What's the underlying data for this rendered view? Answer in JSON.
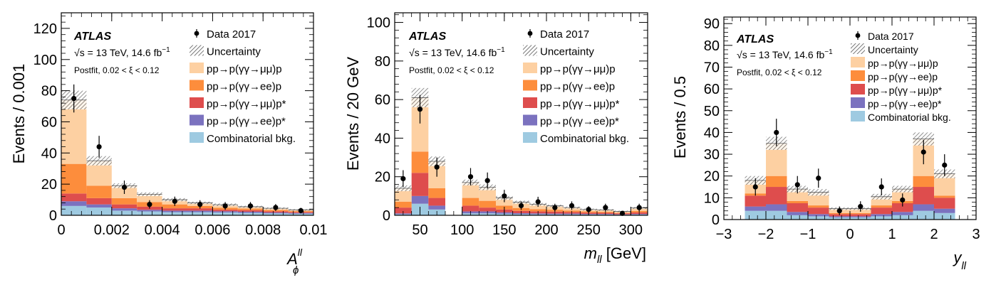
{
  "legend": {
    "experiment": "ATLAS",
    "energy_prefix": "√",
    "energy": "s = 13 TeV, 14.6 fb",
    "energy_exp": "−1",
    "postfit": "Postfit, 0.02 < ξ < 0.12",
    "entries": [
      "Data 2017",
      "Uncertainty",
      "pp→p(γγ→μμ)p",
      "pp→p(γγ→ee)p",
      "pp→p(γγ→μμ)p*",
      "pp→p(γγ→ee)p*",
      "Combinatorial bkg."
    ]
  },
  "colors": {
    "mumu_elastic": "#fdd0a2",
    "ee_elastic": "#fd8d3c",
    "mumu_dissoc": "#de4d4d",
    "ee_dissoc": "#7b72bf",
    "combinatorial": "#9ecae1"
  },
  "chart_data": [
    {
      "type": "bar",
      "stacked": true,
      "ylabel": "Events / 0.001",
      "xlabel_main": "A",
      "xlabel_sup": "ll",
      "xlabel_sub": "ϕ",
      "xlim": [
        0,
        0.01
      ],
      "ylim": [
        0,
        130
      ],
      "xticks": [
        0,
        0.002,
        0.004,
        0.006,
        0.008,
        0.01
      ],
      "xtick_labels": [
        "0",
        "0.002",
        "0.004",
        "0.006",
        "0.008",
        "0.01"
      ],
      "yticks": [
        0,
        20,
        40,
        60,
        80,
        100,
        120
      ],
      "ytick_labels": [
        "0",
        "20",
        "40",
        "60",
        "80",
        "100",
        "120"
      ],
      "bins": [
        [
          0,
          0.001
        ],
        [
          0.001,
          0.002
        ],
        [
          0.002,
          0.003
        ],
        [
          0.003,
          0.004
        ],
        [
          0.004,
          0.005
        ],
        [
          0.005,
          0.006
        ],
        [
          0.006,
          0.007
        ],
        [
          0.007,
          0.008
        ],
        [
          0.008,
          0.009
        ],
        [
          0.009,
          0.01
        ]
      ],
      "series": [
        {
          "name": "Combinatorial bkg.",
          "values": [
            6,
            5,
            3,
            2.5,
            2,
            2,
            1.8,
            1.5,
            1.2,
            1
          ]
        },
        {
          "name": "pp→p(γγ→ee)p*",
          "values": [
            3,
            2,
            1.5,
            1,
            1,
            1,
            0.8,
            0.8,
            0.6,
            0.5
          ]
        },
        {
          "name": "pp→p(γγ→μμ)p*",
          "values": [
            5,
            4,
            2.5,
            2,
            1.5,
            1.5,
            1,
            1,
            0.8,
            0.6
          ]
        },
        {
          "name": "pp→p(γγ→ee)p",
          "values": [
            19,
            8,
            4,
            3,
            2.5,
            1.5,
            1.2,
            1,
            0.8,
            0.6
          ]
        },
        {
          "name": "pp→p(γγ→μμ)p",
          "values": [
            41,
            16,
            8,
            5,
            3,
            2,
            2,
            1.2,
            1.1,
            0.8
          ]
        }
      ],
      "uncertainty": [
        6,
        3,
        1.5,
        1.2,
        1,
        0.8,
        0.8,
        0.6,
        0.6,
        0.5
      ],
      "data": {
        "x": [
          0.0005,
          0.0015,
          0.0025,
          0.0035,
          0.0045,
          0.0055,
          0.0065,
          0.0075,
          0.0085,
          0.0095
        ],
        "y": [
          75,
          44,
          18,
          7,
          9,
          7,
          6,
          6,
          5,
          3
        ],
        "err": [
          9,
          7,
          4.3,
          2.7,
          3,
          2.7,
          2.5,
          2.5,
          2.2,
          1.8
        ]
      }
    },
    {
      "type": "bar",
      "stacked": true,
      "ylabel": "Events / 20 GeV",
      "xlabel_main": "m",
      "xlabel_sub": "ll",
      "xlabel_rest": " [GeV]",
      "xlim": [
        20,
        320
      ],
      "ylim": [
        0,
        105
      ],
      "xticks": [
        50,
        100,
        150,
        200,
        250,
        300
      ],
      "xtick_labels": [
        "50",
        "100",
        "150",
        "200",
        "250",
        "300"
      ],
      "yticks": [
        0,
        20,
        40,
        60,
        80,
        100
      ],
      "ytick_labels": [
        "0",
        "20",
        "40",
        "60",
        "80",
        "100"
      ],
      "bins": [
        [
          20,
          40
        ],
        [
          40,
          60
        ],
        [
          60,
          80
        ],
        [
          80,
          100
        ],
        [
          100,
          120
        ],
        [
          120,
          140
        ],
        [
          140,
          160
        ],
        [
          160,
          180
        ],
        [
          180,
          200
        ],
        [
          200,
          220
        ],
        [
          220,
          240
        ],
        [
          240,
          260
        ],
        [
          260,
          280
        ],
        [
          280,
          300
        ],
        [
          300,
          320
        ]
      ],
      "series": [
        {
          "name": "Combinatorial bkg.",
          "values": [
            0.5,
            6,
            3,
            0,
            1,
            1,
            0.8,
            0.6,
            0.5,
            0.5,
            0.5,
            0.4,
            0.4,
            0.3,
            0.4
          ]
        },
        {
          "name": "pp→p(γγ→ee)p*",
          "values": [
            0.5,
            4,
            2,
            0,
            1,
            1,
            0.7,
            0.5,
            0.5,
            0.4,
            0.4,
            0.3,
            0.3,
            0.2,
            0.3
          ]
        },
        {
          "name": "pp→p(γγ→μμ)p*",
          "values": [
            3,
            12,
            4,
            0,
            3,
            2,
            1.5,
            1.2,
            1,
            1,
            0.8,
            0.7,
            0.6,
            0.5,
            0.8
          ]
        },
        {
          "name": "pp→p(γγ→ee)p",
          "values": [
            3,
            11,
            5,
            0,
            4,
            3.5,
            2,
            1.5,
            1.2,
            1,
            0.8,
            0.6,
            0.5,
            0.4,
            0.8
          ]
        },
        {
          "name": "pp→p(γγ→μμ)p",
          "values": [
            7,
            28,
            14,
            0,
            8,
            7,
            4,
            3,
            2.5,
            2,
            1.5,
            1,
            1,
            0.6,
            1.5
          ]
        }
      ],
      "uncertainty": [
        1.5,
        5,
        2.5,
        0,
        1.5,
        1.5,
        1,
        0.8,
        0.7,
        0.6,
        0.5,
        0.5,
        0.4,
        0.4,
        0.5
      ],
      "data": {
        "x": [
          30,
          50,
          70,
          110,
          130,
          150,
          170,
          190,
          210,
          230,
          250,
          270,
          290,
          310
        ],
        "y": [
          19,
          55,
          25,
          20,
          18,
          10,
          5,
          7,
          4,
          5,
          3,
          4,
          1,
          4
        ],
        "err": [
          4.4,
          7.4,
          5,
          4.5,
          4.2,
          3.2,
          2.2,
          2.6,
          2,
          2.2,
          1.7,
          2,
          1,
          2
        ]
      }
    },
    {
      "type": "bar",
      "stacked": true,
      "ylabel": "Events / 0.5",
      "xlabel_main": "y",
      "xlabel_sub": "ll",
      "xlim": [
        -3,
        3
      ],
      "ylim": [
        0,
        93
      ],
      "xticks": [
        -3,
        -2,
        -1,
        0,
        1,
        2,
        3
      ],
      "xtick_labels": [
        "−3",
        "−2",
        "−1",
        "0",
        "1",
        "2",
        "3"
      ],
      "yticks": [
        0,
        10,
        20,
        30,
        40,
        50,
        60,
        70,
        80,
        90
      ],
      "ytick_labels": [
        "0",
        "10",
        "20",
        "30",
        "40",
        "50",
        "60",
        "70",
        "80",
        "90"
      ],
      "bins": [
        [
          -2.5,
          -2
        ],
        [
          -2,
          -1.5
        ],
        [
          -1.5,
          -1
        ],
        [
          -1,
          -0.5
        ],
        [
          -0.5,
          0
        ],
        [
          0,
          0.5
        ],
        [
          0.5,
          1
        ],
        [
          1,
          1.5
        ],
        [
          1.5,
          2
        ],
        [
          2,
          2.5
        ]
      ],
      "series": [
        {
          "name": "Combinatorial bkg.",
          "values": [
            4,
            4,
            2,
            1.5,
            1,
            1,
            1.5,
            2,
            4,
            3
          ]
        },
        {
          "name": "pp→p(γγ→ee)p*",
          "values": [
            2,
            3,
            1.5,
            1,
            0.5,
            0.5,
            1,
            1.5,
            3,
            2
          ]
        },
        {
          "name": "pp→p(γγ→μμ)p*",
          "values": [
            5,
            8,
            4,
            3,
            1,
            1,
            3,
            4,
            8,
            5
          ]
        },
        {
          "name": "pp→p(γγ→ee)p",
          "values": [
            1,
            5,
            1,
            1,
            0.5,
            0.5,
            1,
            1,
            5,
            1
          ]
        },
        {
          "name": "pp→p(γγ→μμ)p",
          "values": [
            6,
            15,
            5.5,
            6,
            2,
            2,
            4,
            5.5,
            17,
            10
          ]
        }
      ],
      "uncertainty": [
        2,
        3,
        1.5,
        1.5,
        0.6,
        0.6,
        1.3,
        1.5,
        3,
        2
      ],
      "data": {
        "x": [
          -2.25,
          -1.75,
          -1.25,
          -0.75,
          -0.25,
          0.25,
          0.75,
          1.25,
          1.75,
          2.25
        ],
        "y": [
          15,
          40,
          16,
          19,
          4,
          6,
          15,
          9,
          31,
          25
        ],
        "err": [
          4,
          6.3,
          4,
          4.4,
          2,
          2.4,
          3.9,
          3,
          5.6,
          5
        ]
      }
    }
  ]
}
